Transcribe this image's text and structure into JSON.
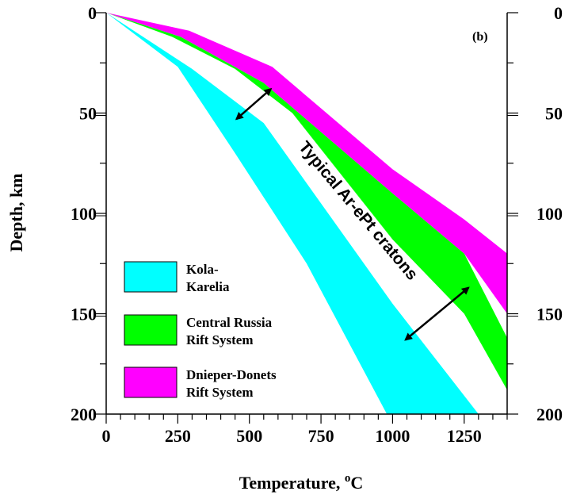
{
  "chart_data": {
    "type": "area",
    "panel_label": "(b)",
    "xlabel": "Temperature, ",
    "xlabel_sup": "o",
    "xlabel_unit": "C",
    "ylabel": "Depth, km",
    "xlim": [
      0,
      1400
    ],
    "ylim": [
      0,
      200
    ],
    "y_inverted": true,
    "x_ticks": [
      0,
      250,
      500,
      750,
      1000,
      1250
    ],
    "x_tick_labels": [
      "0",
      "250",
      "500",
      "750",
      "1000",
      "1250"
    ],
    "y_ticks": [
      0,
      50,
      100,
      150,
      200
    ],
    "y_tick_labels": [
      "0",
      "50",
      "100",
      "150",
      "200"
    ],
    "legend_position": "bottom-left",
    "colors": {
      "kola": "#00ffff",
      "central": "#00ff00",
      "dnieper": "#ff00ff",
      "axis": "#000000",
      "background": "#ffffff"
    },
    "series": [
      {
        "key": "kola",
        "legend_lines": [
          "Kola-",
          "Karelia"
        ],
        "color": "#00ffff",
        "upper": [
          [
            0,
            0
          ],
          [
            300,
            28
          ],
          [
            550,
            55
          ],
          [
            1000,
            145
          ],
          [
            1300,
            200
          ]
        ],
        "lower": [
          [
            0,
            0
          ],
          [
            250,
            27
          ],
          [
            450,
            70
          ],
          [
            700,
            125
          ],
          [
            980,
            200
          ]
        ]
      },
      {
        "key": "central",
        "legend_lines": [
          "Central Russia",
          "Rift System"
        ],
        "color": "#00ff00",
        "upper": [
          [
            0,
            0
          ],
          [
            260,
            12
          ],
          [
            550,
            35
          ],
          [
            1000,
            90
          ],
          [
            1250,
            120
          ],
          [
            1400,
            162
          ]
        ],
        "lower": [
          [
            0,
            0
          ],
          [
            230,
            12
          ],
          [
            450,
            28
          ],
          [
            650,
            50
          ],
          [
            1000,
            113
          ],
          [
            1250,
            150
          ],
          [
            1400,
            188
          ]
        ]
      },
      {
        "key": "dnieper",
        "legend_lines": [
          "Dnieper-Donets",
          "Rift System"
        ],
        "color": "#ff00ff",
        "upper": [
          [
            0,
            0
          ],
          [
            290,
            9
          ],
          [
            580,
            27
          ],
          [
            1000,
            78
          ],
          [
            1250,
            103
          ],
          [
            1400,
            120
          ]
        ],
        "lower": [
          [
            0,
            0
          ],
          [
            260,
            12
          ],
          [
            550,
            35
          ],
          [
            1000,
            90
          ],
          [
            1250,
            120
          ],
          [
            1400,
            150
          ]
        ]
      }
    ],
    "annotations": [
      {
        "text": "Typical Ar-ePt cratons",
        "arrows": [
          {
            "from": [
              455,
              53
            ],
            "to": [
              575,
              38
            ]
          },
          {
            "from": [
              1045,
              163
            ],
            "to": [
              1265,
              137
            ]
          }
        ]
      }
    ]
  }
}
